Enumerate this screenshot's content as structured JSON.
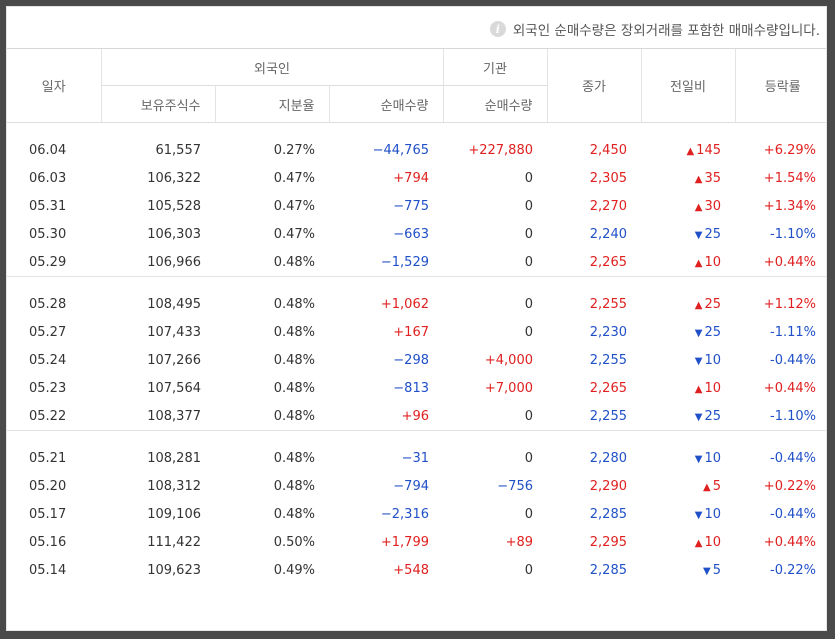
{
  "notice": {
    "icon": "info-icon",
    "text": "외국인 순매수량은 장외거래를 포함한 매매수량입니다."
  },
  "headers": {
    "date": "일자",
    "foreign": "외국인",
    "institution": "기관",
    "close": "종가",
    "change": "전일비",
    "rate": "등락률",
    "holdings": "보유주식수",
    "share": "지분율",
    "foreign_net": "순매수량",
    "inst_net": "순매수량"
  },
  "colors": {
    "up": "#e02020",
    "down": "#2050c8",
    "neutral": "#333333"
  },
  "groups": [
    [
      {
        "date": "06.04",
        "holdings": "61,557",
        "share": "0.27%",
        "foreign_net": "−44,765",
        "foreign_dir": "down",
        "inst_net": "+227,880",
        "inst_dir": "up",
        "close": "2,450",
        "close_dir": "up",
        "change": "145",
        "change_dir": "up",
        "rate": "+6.29%",
        "rate_dir": "up"
      },
      {
        "date": "06.03",
        "holdings": "106,322",
        "share": "0.47%",
        "foreign_net": "+794",
        "foreign_dir": "up",
        "inst_net": "0",
        "inst_dir": "none",
        "close": "2,305",
        "close_dir": "up",
        "change": "35",
        "change_dir": "up",
        "rate": "+1.54%",
        "rate_dir": "up"
      },
      {
        "date": "05.31",
        "holdings": "105,528",
        "share": "0.47%",
        "foreign_net": "−775",
        "foreign_dir": "down",
        "inst_net": "0",
        "inst_dir": "none",
        "close": "2,270",
        "close_dir": "up",
        "change": "30",
        "change_dir": "up",
        "rate": "+1.34%",
        "rate_dir": "up"
      },
      {
        "date": "05.30",
        "holdings": "106,303",
        "share": "0.47%",
        "foreign_net": "−663",
        "foreign_dir": "down",
        "inst_net": "0",
        "inst_dir": "none",
        "close": "2,240",
        "close_dir": "down",
        "change": "25",
        "change_dir": "down",
        "rate": "-1.10%",
        "rate_dir": "down"
      },
      {
        "date": "05.29",
        "holdings": "106,966",
        "share": "0.48%",
        "foreign_net": "−1,529",
        "foreign_dir": "down",
        "inst_net": "0",
        "inst_dir": "none",
        "close": "2,265",
        "close_dir": "up",
        "change": "10",
        "change_dir": "up",
        "rate": "+0.44%",
        "rate_dir": "up"
      }
    ],
    [
      {
        "date": "05.28",
        "holdings": "108,495",
        "share": "0.48%",
        "foreign_net": "+1,062",
        "foreign_dir": "up",
        "inst_net": "0",
        "inst_dir": "none",
        "close": "2,255",
        "close_dir": "up",
        "change": "25",
        "change_dir": "up",
        "rate": "+1.12%",
        "rate_dir": "up"
      },
      {
        "date": "05.27",
        "holdings": "107,433",
        "share": "0.48%",
        "foreign_net": "+167",
        "foreign_dir": "up",
        "inst_net": "0",
        "inst_dir": "none",
        "close": "2,230",
        "close_dir": "down",
        "change": "25",
        "change_dir": "down",
        "rate": "-1.11%",
        "rate_dir": "down"
      },
      {
        "date": "05.24",
        "holdings": "107,266",
        "share": "0.48%",
        "foreign_net": "−298",
        "foreign_dir": "down",
        "inst_net": "+4,000",
        "inst_dir": "up",
        "close": "2,255",
        "close_dir": "down",
        "change": "10",
        "change_dir": "down",
        "rate": "-0.44%",
        "rate_dir": "down"
      },
      {
        "date": "05.23",
        "holdings": "107,564",
        "share": "0.48%",
        "foreign_net": "−813",
        "foreign_dir": "down",
        "inst_net": "+7,000",
        "inst_dir": "up",
        "close": "2,265",
        "close_dir": "up",
        "change": "10",
        "change_dir": "up",
        "rate": "+0.44%",
        "rate_dir": "up"
      },
      {
        "date": "05.22",
        "holdings": "108,377",
        "share": "0.48%",
        "foreign_net": "+96",
        "foreign_dir": "up",
        "inst_net": "0",
        "inst_dir": "none",
        "close": "2,255",
        "close_dir": "down",
        "change": "25",
        "change_dir": "down",
        "rate": "-1.10%",
        "rate_dir": "down"
      }
    ],
    [
      {
        "date": "05.21",
        "holdings": "108,281",
        "share": "0.48%",
        "foreign_net": "−31",
        "foreign_dir": "down",
        "inst_net": "0",
        "inst_dir": "none",
        "close": "2,280",
        "close_dir": "down",
        "change": "10",
        "change_dir": "down",
        "rate": "-0.44%",
        "rate_dir": "down"
      },
      {
        "date": "05.20",
        "holdings": "108,312",
        "share": "0.48%",
        "foreign_net": "−794",
        "foreign_dir": "down",
        "inst_net": "−756",
        "inst_dir": "down",
        "close": "2,290",
        "close_dir": "up",
        "change": "5",
        "change_dir": "up",
        "rate": "+0.22%",
        "rate_dir": "up"
      },
      {
        "date": "05.17",
        "holdings": "109,106",
        "share": "0.48%",
        "foreign_net": "−2,316",
        "foreign_dir": "down",
        "inst_net": "0",
        "inst_dir": "none",
        "close": "2,285",
        "close_dir": "down",
        "change": "10",
        "change_dir": "down",
        "rate": "-0.44%",
        "rate_dir": "down"
      },
      {
        "date": "05.16",
        "holdings": "111,422",
        "share": "0.50%",
        "foreign_net": "+1,799",
        "foreign_dir": "up",
        "inst_net": "+89",
        "inst_dir": "up",
        "close": "2,295",
        "close_dir": "up",
        "change": "10",
        "change_dir": "up",
        "rate": "+0.44%",
        "rate_dir": "up"
      },
      {
        "date": "05.14",
        "holdings": "109,623",
        "share": "0.49%",
        "foreign_net": "+548",
        "foreign_dir": "up",
        "inst_net": "0",
        "inst_dir": "none",
        "close": "2,285",
        "close_dir": "down",
        "change": "5",
        "change_dir": "down",
        "rate": "-0.22%",
        "rate_dir": "down"
      }
    ]
  ]
}
